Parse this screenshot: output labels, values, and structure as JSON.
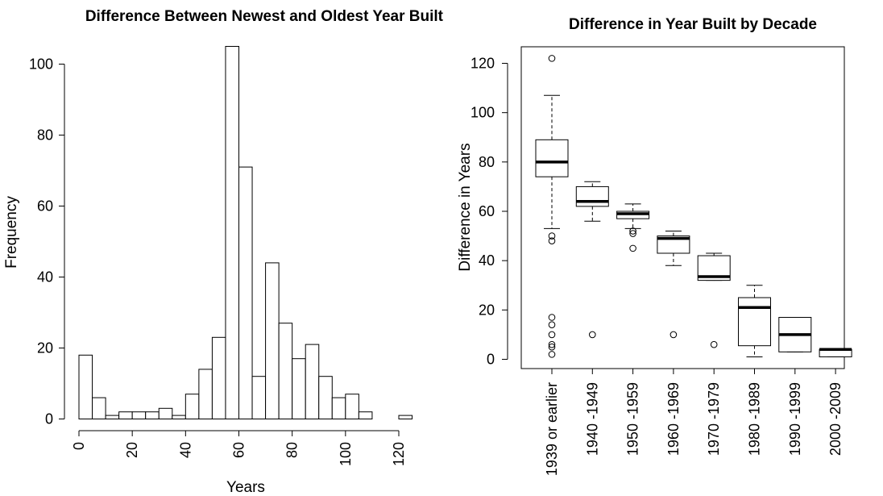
{
  "chart_data": [
    {
      "type": "histogram",
      "title": "Difference Between Newest and Oldest Year Built",
      "xlabel": "Years",
      "ylabel": "Frequency",
      "xlim": [
        0,
        125
      ],
      "ylim": [
        0,
        105
      ],
      "x_ticks": [
        0,
        20,
        40,
        60,
        80,
        100,
        120
      ],
      "y_ticks": [
        0,
        20,
        40,
        60,
        80,
        100
      ],
      "bin_width": 5,
      "bins": [
        {
          "start": 0,
          "end": 5,
          "count": 18
        },
        {
          "start": 5,
          "end": 10,
          "count": 6
        },
        {
          "start": 10,
          "end": 15,
          "count": 1
        },
        {
          "start": 15,
          "end": 20,
          "count": 2
        },
        {
          "start": 20,
          "end": 25,
          "count": 2
        },
        {
          "start": 25,
          "end": 30,
          "count": 2
        },
        {
          "start": 30,
          "end": 35,
          "count": 3
        },
        {
          "start": 35,
          "end": 40,
          "count": 1
        },
        {
          "start": 40,
          "end": 45,
          "count": 7
        },
        {
          "start": 45,
          "end": 50,
          "count": 14
        },
        {
          "start": 50,
          "end": 55,
          "count": 23
        },
        {
          "start": 55,
          "end": 60,
          "count": 105
        },
        {
          "start": 60,
          "end": 65,
          "count": 71
        },
        {
          "start": 65,
          "end": 70,
          "count": 12
        },
        {
          "start": 70,
          "end": 75,
          "count": 44
        },
        {
          "start": 75,
          "end": 80,
          "count": 27
        },
        {
          "start": 80,
          "end": 85,
          "count": 17
        },
        {
          "start": 85,
          "end": 90,
          "count": 21
        },
        {
          "start": 90,
          "end": 95,
          "count": 12
        },
        {
          "start": 95,
          "end": 100,
          "count": 6
        },
        {
          "start": 100,
          "end": 105,
          "count": 7
        },
        {
          "start": 105,
          "end": 110,
          "count": 2
        },
        {
          "start": 110,
          "end": 115,
          "count": 0
        },
        {
          "start": 115,
          "end": 120,
          "count": 0
        },
        {
          "start": 120,
          "end": 125,
          "count": 1
        }
      ]
    },
    {
      "type": "boxplot",
      "title": "Difference in Year Built by Decade",
      "xlabel": "",
      "ylabel": "Difference in Years",
      "ylim": [
        -4,
        127
      ],
      "y_ticks": [
        0,
        20,
        40,
        60,
        80,
        100,
        120
      ],
      "grid": false,
      "categories": [
        "1939 or earlier",
        "1940 -1949",
        "1950 -1959",
        "1960 -1969",
        "1970 -1979",
        "1980 -1989",
        "1990 -1999",
        "2000 -2009"
      ],
      "boxes": [
        {
          "category": "1939 or earlier",
          "whisker_low": 53,
          "q1": 74,
          "median": 80,
          "q3": 89,
          "whisker_high": 107,
          "outliers": [
            122,
            50,
            48,
            17,
            14,
            10,
            6,
            5,
            2
          ]
        },
        {
          "category": "1940 -1949",
          "whisker_low": 56,
          "q1": 62,
          "median": 64,
          "q3": 70,
          "whisker_high": 72,
          "outliers": [
            10
          ]
        },
        {
          "category": "1950 -1959",
          "whisker_low": 53,
          "q1": 57,
          "median": 59,
          "q3": 60,
          "whisker_high": 63,
          "outliers": [
            52,
            51,
            45
          ]
        },
        {
          "category": "1960 -1969",
          "whisker_low": 38,
          "q1": 43,
          "median": 49,
          "q3": 50,
          "whisker_high": 52,
          "outliers": [
            10
          ]
        },
        {
          "category": "1970 -1979",
          "whisker_low": 32,
          "q1": 32,
          "median": 33.5,
          "q3": 42,
          "whisker_high": 43,
          "outliers": [
            6
          ]
        },
        {
          "category": "1980 -1989",
          "whisker_low": 1,
          "q1": 5.5,
          "median": 21,
          "q3": 25,
          "whisker_high": 30,
          "outliers": []
        },
        {
          "category": "1990 -1999",
          "whisker_low": 3,
          "q1": 3,
          "median": 10,
          "q3": 17,
          "whisker_high": 17,
          "outliers": []
        },
        {
          "category": "2000 -2009",
          "whisker_low": 1,
          "q1": 1,
          "median": 4,
          "q3": 4,
          "whisker_high": 4,
          "outliers": []
        }
      ]
    }
  ]
}
